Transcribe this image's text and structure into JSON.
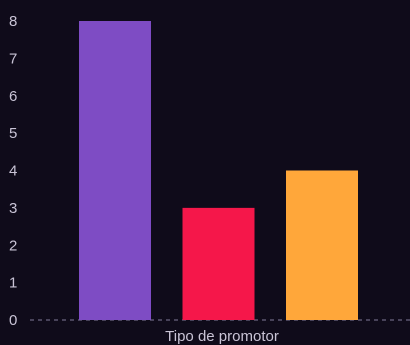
{
  "chart_data": {
    "type": "bar",
    "title": "",
    "xlabel": "Tipo de promotor",
    "ylabel": "",
    "categories": [
      "",
      "",
      ""
    ],
    "values": [
      8,
      3,
      4
    ],
    "colors": [
      "#7e4cc4",
      "#f5174a",
      "#ffa73a"
    ],
    "ylim": [
      0,
      8.3
    ],
    "yticks": [
      0,
      1,
      2,
      3,
      4,
      5,
      6,
      7,
      8
    ],
    "grid": false,
    "legend": "none",
    "baseline_style": "dashed"
  },
  "theme": {
    "background": "#0f0b1a",
    "text": "#c9c4d6",
    "baseline": "#6b6580"
  }
}
